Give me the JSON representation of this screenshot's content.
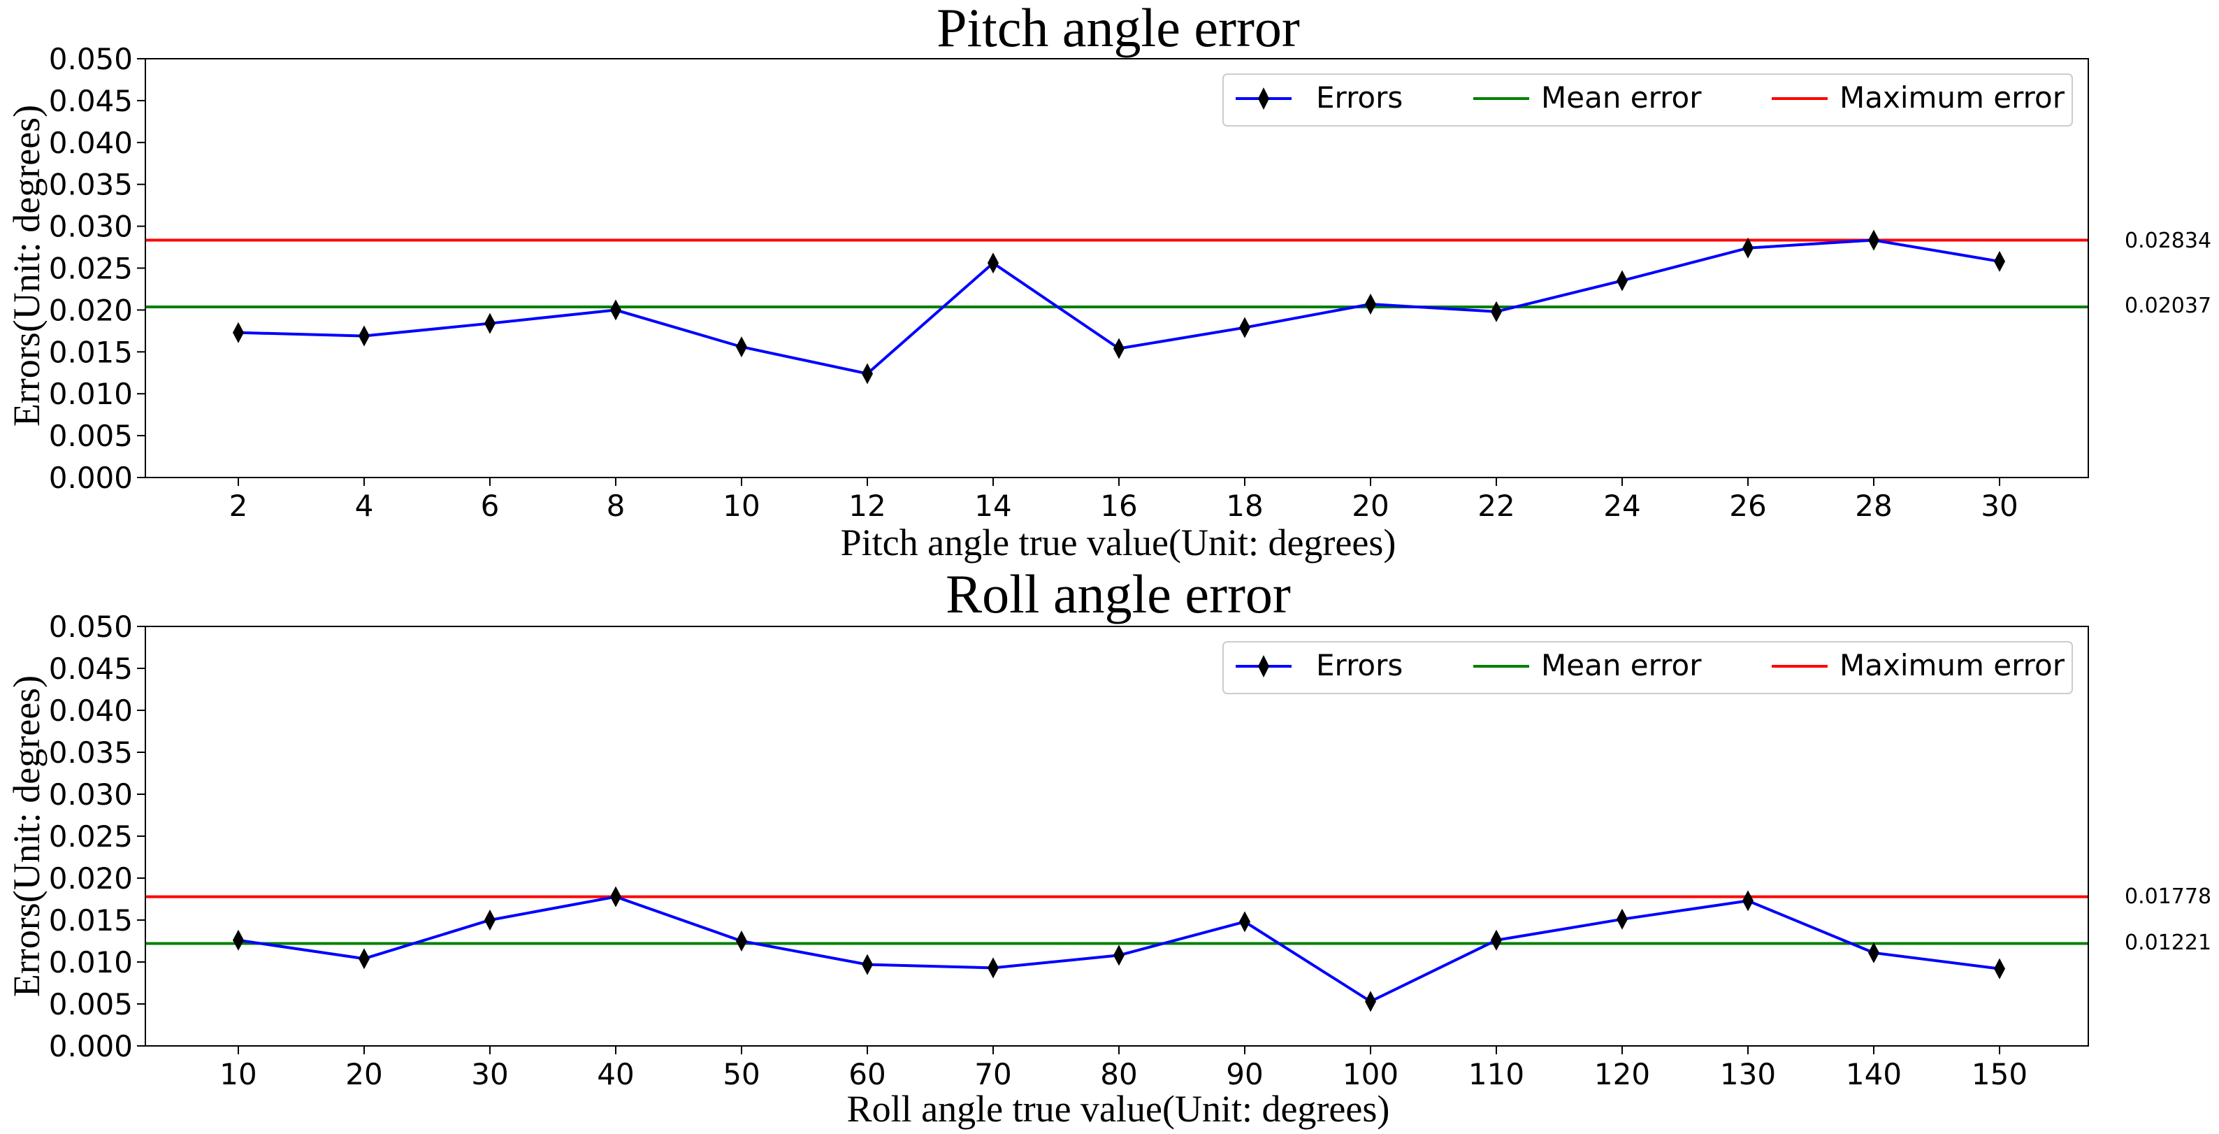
{
  "chart_data": [
    {
      "type": "line",
      "title": "Pitch angle error",
      "xlabel": "Pitch angle true value(Unit: degrees)",
      "ylabel": "Errors(Unit: degrees)",
      "categories": [
        "2",
        "4",
        "6",
        "8",
        "10",
        "12",
        "14",
        "16",
        "18",
        "20",
        "22",
        "24",
        "26",
        "28",
        "30"
      ],
      "ylim": [
        0,
        0.05
      ],
      "yticks": [
        "0.000",
        "0.005",
        "0.010",
        "0.015",
        "0.020",
        "0.025",
        "0.030",
        "0.035",
        "0.040",
        "0.045",
        "0.050"
      ],
      "series": [
        {
          "name": "Errors",
          "color": "#0000ff",
          "marker": "diamond",
          "values": [
            0.0173,
            0.0169,
            0.0184,
            0.02,
            0.0156,
            0.0124,
            0.0256,
            0.0154,
            0.0179,
            0.0207,
            0.0198,
            0.0235,
            0.0274,
            0.02834,
            0.0258
          ]
        },
        {
          "name": "Mean error",
          "color": "#008000",
          "value": 0.02037
        },
        {
          "name": "Maximum error",
          "color": "#ff0000",
          "value": 0.02834
        }
      ],
      "annotations": [
        "0.02834",
        "0.02037"
      ],
      "legend": "top-right",
      "grid": false
    },
    {
      "type": "line",
      "title": "Roll angle error",
      "xlabel": "Roll angle true value(Unit: degrees)",
      "ylabel": "Errors(Unit: degrees)",
      "categories": [
        "10",
        "20",
        "30",
        "40",
        "50",
        "60",
        "70",
        "80",
        "90",
        "100",
        "110",
        "120",
        "130",
        "140",
        "150"
      ],
      "ylim": [
        0,
        0.05
      ],
      "yticks": [
        "0.000",
        "0.005",
        "0.010",
        "0.015",
        "0.020",
        "0.025",
        "0.030",
        "0.035",
        "0.040",
        "0.045",
        "0.050"
      ],
      "series": [
        {
          "name": "Errors",
          "color": "#0000ff",
          "marker": "diamond",
          "values": [
            0.0126,
            0.0104,
            0.015,
            0.01778,
            0.0125,
            0.0097,
            0.0093,
            0.0108,
            0.0148,
            0.0053,
            0.0126,
            0.0151,
            0.0173,
            0.0111,
            0.0092
          ]
        },
        {
          "name": "Mean error",
          "color": "#008000",
          "value": 0.01221
        },
        {
          "name": "Maximum error",
          "color": "#ff0000",
          "value": 0.01778
        }
      ],
      "annotations": [
        "0.01778",
        "0.01221"
      ],
      "legend": "top-right",
      "grid": false
    }
  ]
}
